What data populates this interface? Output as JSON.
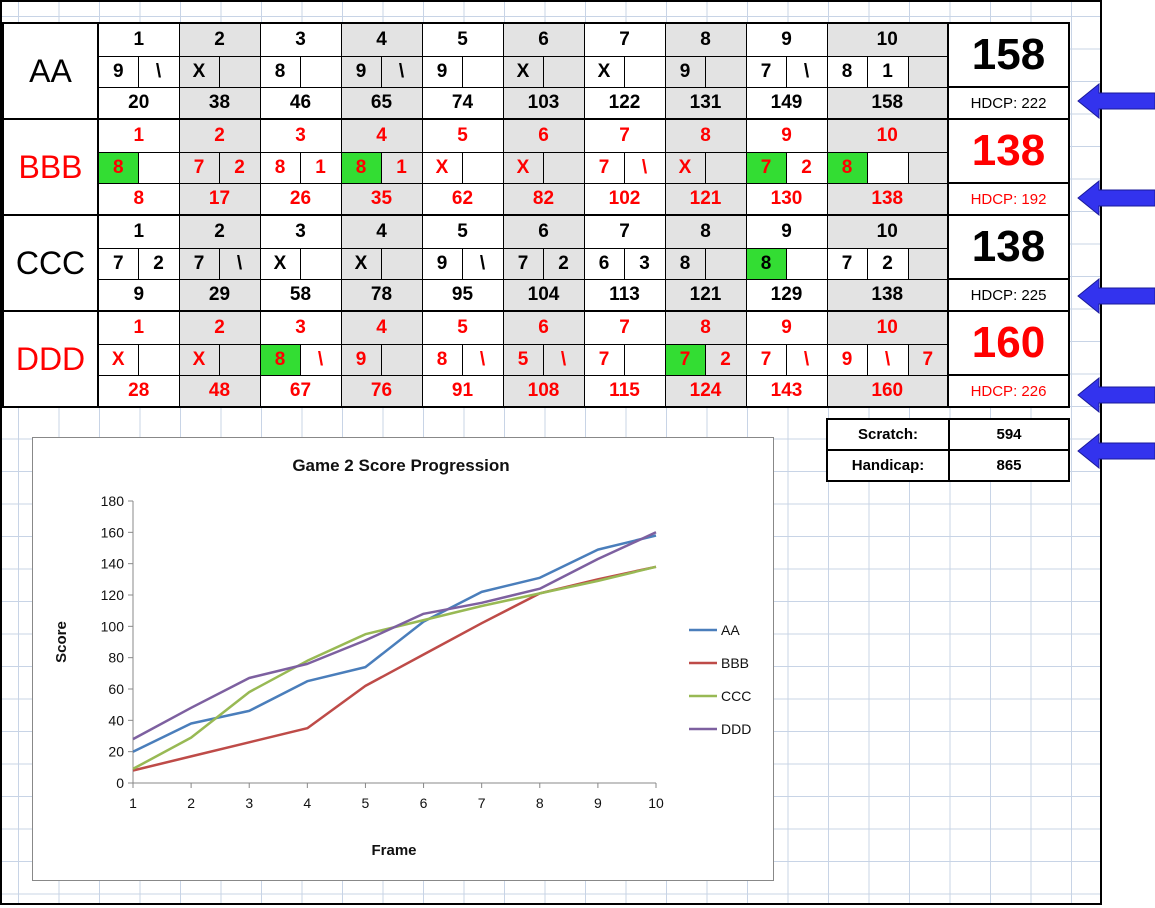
{
  "players": [
    {
      "name": "AA",
      "color": "#000000",
      "frame_numbers": [
        "1",
        "2",
        "3",
        "4",
        "5",
        "6",
        "7",
        "8",
        "9",
        "10"
      ],
      "balls": [
        [
          "9",
          "\\"
        ],
        [
          "X",
          ""
        ],
        [
          "8",
          ""
        ],
        [
          "9",
          "\\"
        ],
        [
          "9",
          ""
        ],
        [
          "X",
          ""
        ],
        [
          "X",
          ""
        ],
        [
          "9",
          ""
        ],
        [
          "7",
          "\\"
        ],
        [
          "8",
          "1",
          ""
        ]
      ],
      "highlight": [],
      "cumulative": [
        "20",
        "38",
        "46",
        "65",
        "74",
        "103",
        "122",
        "131",
        "149",
        "158"
      ],
      "total": "158",
      "hdcp": "HDCP: 222"
    },
    {
      "name": "BBB",
      "color": "#ff0000",
      "frame_numbers": [
        "1",
        "2",
        "3",
        "4",
        "5",
        "6",
        "7",
        "8",
        "9",
        "10"
      ],
      "balls": [
        [
          "8",
          ""
        ],
        [
          "7",
          "2"
        ],
        [
          "8",
          "1"
        ],
        [
          "8",
          "1"
        ],
        [
          "X",
          ""
        ],
        [
          "X",
          ""
        ],
        [
          "7",
          "\\"
        ],
        [
          "X",
          ""
        ],
        [
          "7",
          "2"
        ],
        [
          "8",
          "",
          ""
        ]
      ],
      "highlight": [
        [
          0,
          0
        ],
        [
          3,
          0
        ],
        [
          8,
          0
        ],
        [
          9,
          0
        ]
      ],
      "cumulative": [
        "8",
        "17",
        "26",
        "35",
        "62",
        "82",
        "102",
        "121",
        "130",
        "138"
      ],
      "total": "138",
      "hdcp": "HDCP: 192"
    },
    {
      "name": "CCC",
      "color": "#000000",
      "frame_numbers": [
        "1",
        "2",
        "3",
        "4",
        "5",
        "6",
        "7",
        "8",
        "9",
        "10"
      ],
      "balls": [
        [
          "7",
          "2"
        ],
        [
          "7",
          "\\"
        ],
        [
          "X",
          ""
        ],
        [
          "X",
          ""
        ],
        [
          "9",
          "\\"
        ],
        [
          "7",
          "2"
        ],
        [
          "6",
          "3"
        ],
        [
          "8",
          ""
        ],
        [
          "8",
          ""
        ],
        [
          "7",
          "2",
          ""
        ]
      ],
      "highlight": [
        [
          8,
          0
        ]
      ],
      "cumulative": [
        "9",
        "29",
        "58",
        "78",
        "95",
        "104",
        "113",
        "121",
        "129",
        "138"
      ],
      "total": "138",
      "hdcp": "HDCP: 225"
    },
    {
      "name": "DDD",
      "color": "#ff0000",
      "frame_numbers": [
        "1",
        "2",
        "3",
        "4",
        "5",
        "6",
        "7",
        "8",
        "9",
        "10"
      ],
      "balls": [
        [
          "X",
          ""
        ],
        [
          "X",
          ""
        ],
        [
          "8",
          "\\"
        ],
        [
          "9",
          ""
        ],
        [
          "8",
          "\\"
        ],
        [
          "5",
          "\\"
        ],
        [
          "7",
          ""
        ],
        [
          "7",
          "2"
        ],
        [
          "7",
          "\\"
        ],
        [
          "9",
          "\\",
          "7"
        ]
      ],
      "highlight": [
        [
          2,
          0
        ],
        [
          7,
          0
        ]
      ],
      "cumulative": [
        "28",
        "48",
        "67",
        "76",
        "91",
        "108",
        "115",
        "124",
        "143",
        "160"
      ],
      "total": "160",
      "hdcp": "HDCP: 226"
    }
  ],
  "summary": {
    "scratch_label": "Scratch:",
    "scratch_value": "594",
    "handicap_label": "Handicap:",
    "handicap_value": "865"
  },
  "colors": {
    "arrow": "#3333ee",
    "highlight": "#33dd33",
    "shade": "#e3e3e3"
  },
  "chart_data": {
    "type": "line",
    "title": "Game 2 Score Progression",
    "xlabel": "Frame",
    "ylabel": "Score",
    "x": [
      1,
      2,
      3,
      4,
      5,
      6,
      7,
      8,
      9,
      10
    ],
    "ylim": [
      0,
      180
    ],
    "yticks": [
      0,
      20,
      40,
      60,
      80,
      100,
      120,
      140,
      160,
      180
    ],
    "legend_position": "right",
    "grid": false,
    "series": [
      {
        "name": "AA",
        "color": "#4a7ebb",
        "values": [
          20,
          38,
          46,
          65,
          74,
          103,
          122,
          131,
          149,
          158
        ]
      },
      {
        "name": "BBB",
        "color": "#be4b48",
        "values": [
          8,
          17,
          26,
          35,
          62,
          82,
          102,
          121,
          130,
          138
        ]
      },
      {
        "name": "CCC",
        "color": "#98b954",
        "values": [
          9,
          29,
          58,
          78,
          95,
          104,
          113,
          121,
          129,
          138
        ]
      },
      {
        "name": "DDD",
        "color": "#7d60a0",
        "values": [
          28,
          48,
          67,
          76,
          91,
          108,
          115,
          124,
          143,
          160
        ]
      }
    ]
  }
}
